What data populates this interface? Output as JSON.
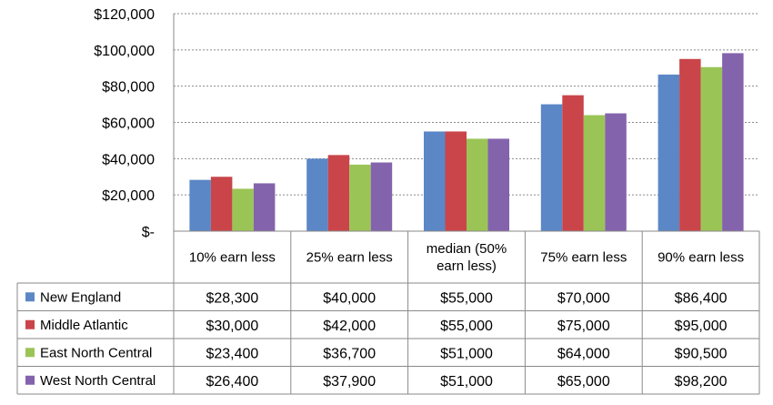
{
  "chart_data": {
    "type": "bar",
    "categories": [
      "10% earn less",
      "25% earn less",
      "median (50% earn less)",
      "75% earn less",
      "90% earn less"
    ],
    "category_lines": [
      [
        "10% earn less"
      ],
      [
        "25% earn less"
      ],
      [
        "median (50%",
        "earn less)"
      ],
      [
        "75% earn less"
      ],
      [
        "90% earn less"
      ]
    ],
    "series": [
      {
        "name": "New England",
        "color": "#5b87c6",
        "values": [
          28300,
          40000,
          55000,
          70000,
          86400
        ],
        "labels": [
          "$28,300",
          "$40,000",
          "$55,000",
          "$70,000",
          "$86,400"
        ]
      },
      {
        "name": "Middle Atlantic",
        "color": "#c9454a",
        "values": [
          30000,
          42000,
          55000,
          75000,
          95000
        ],
        "labels": [
          "$30,000",
          "$42,000",
          "$55,000",
          "$75,000",
          "$95,000"
        ]
      },
      {
        "name": "East North Central",
        "color": "#9bc456",
        "values": [
          23400,
          36700,
          51000,
          64000,
          90500
        ],
        "labels": [
          "$23,400",
          "$36,700",
          "$51,000",
          "$64,000",
          "$90,500"
        ]
      },
      {
        "name": "West North Central",
        "color": "#8463ad",
        "values": [
          26400,
          37900,
          51000,
          65000,
          98200
        ],
        "labels": [
          "$26,400",
          "$37,900",
          "$51,000",
          "$65,000",
          "$98,200"
        ]
      }
    ],
    "ylim": [
      0,
      120000
    ],
    "yticks": [
      0,
      20000,
      40000,
      60000,
      80000,
      100000,
      120000
    ],
    "ytick_labels": [
      "$-",
      "$20,000",
      "$40,000",
      "$60,000",
      "$80,000",
      "$100,000",
      "$120,000"
    ],
    "grid": true,
    "legend_placement": "data-table-left",
    "title": "",
    "xlabel": "",
    "ylabel": ""
  }
}
